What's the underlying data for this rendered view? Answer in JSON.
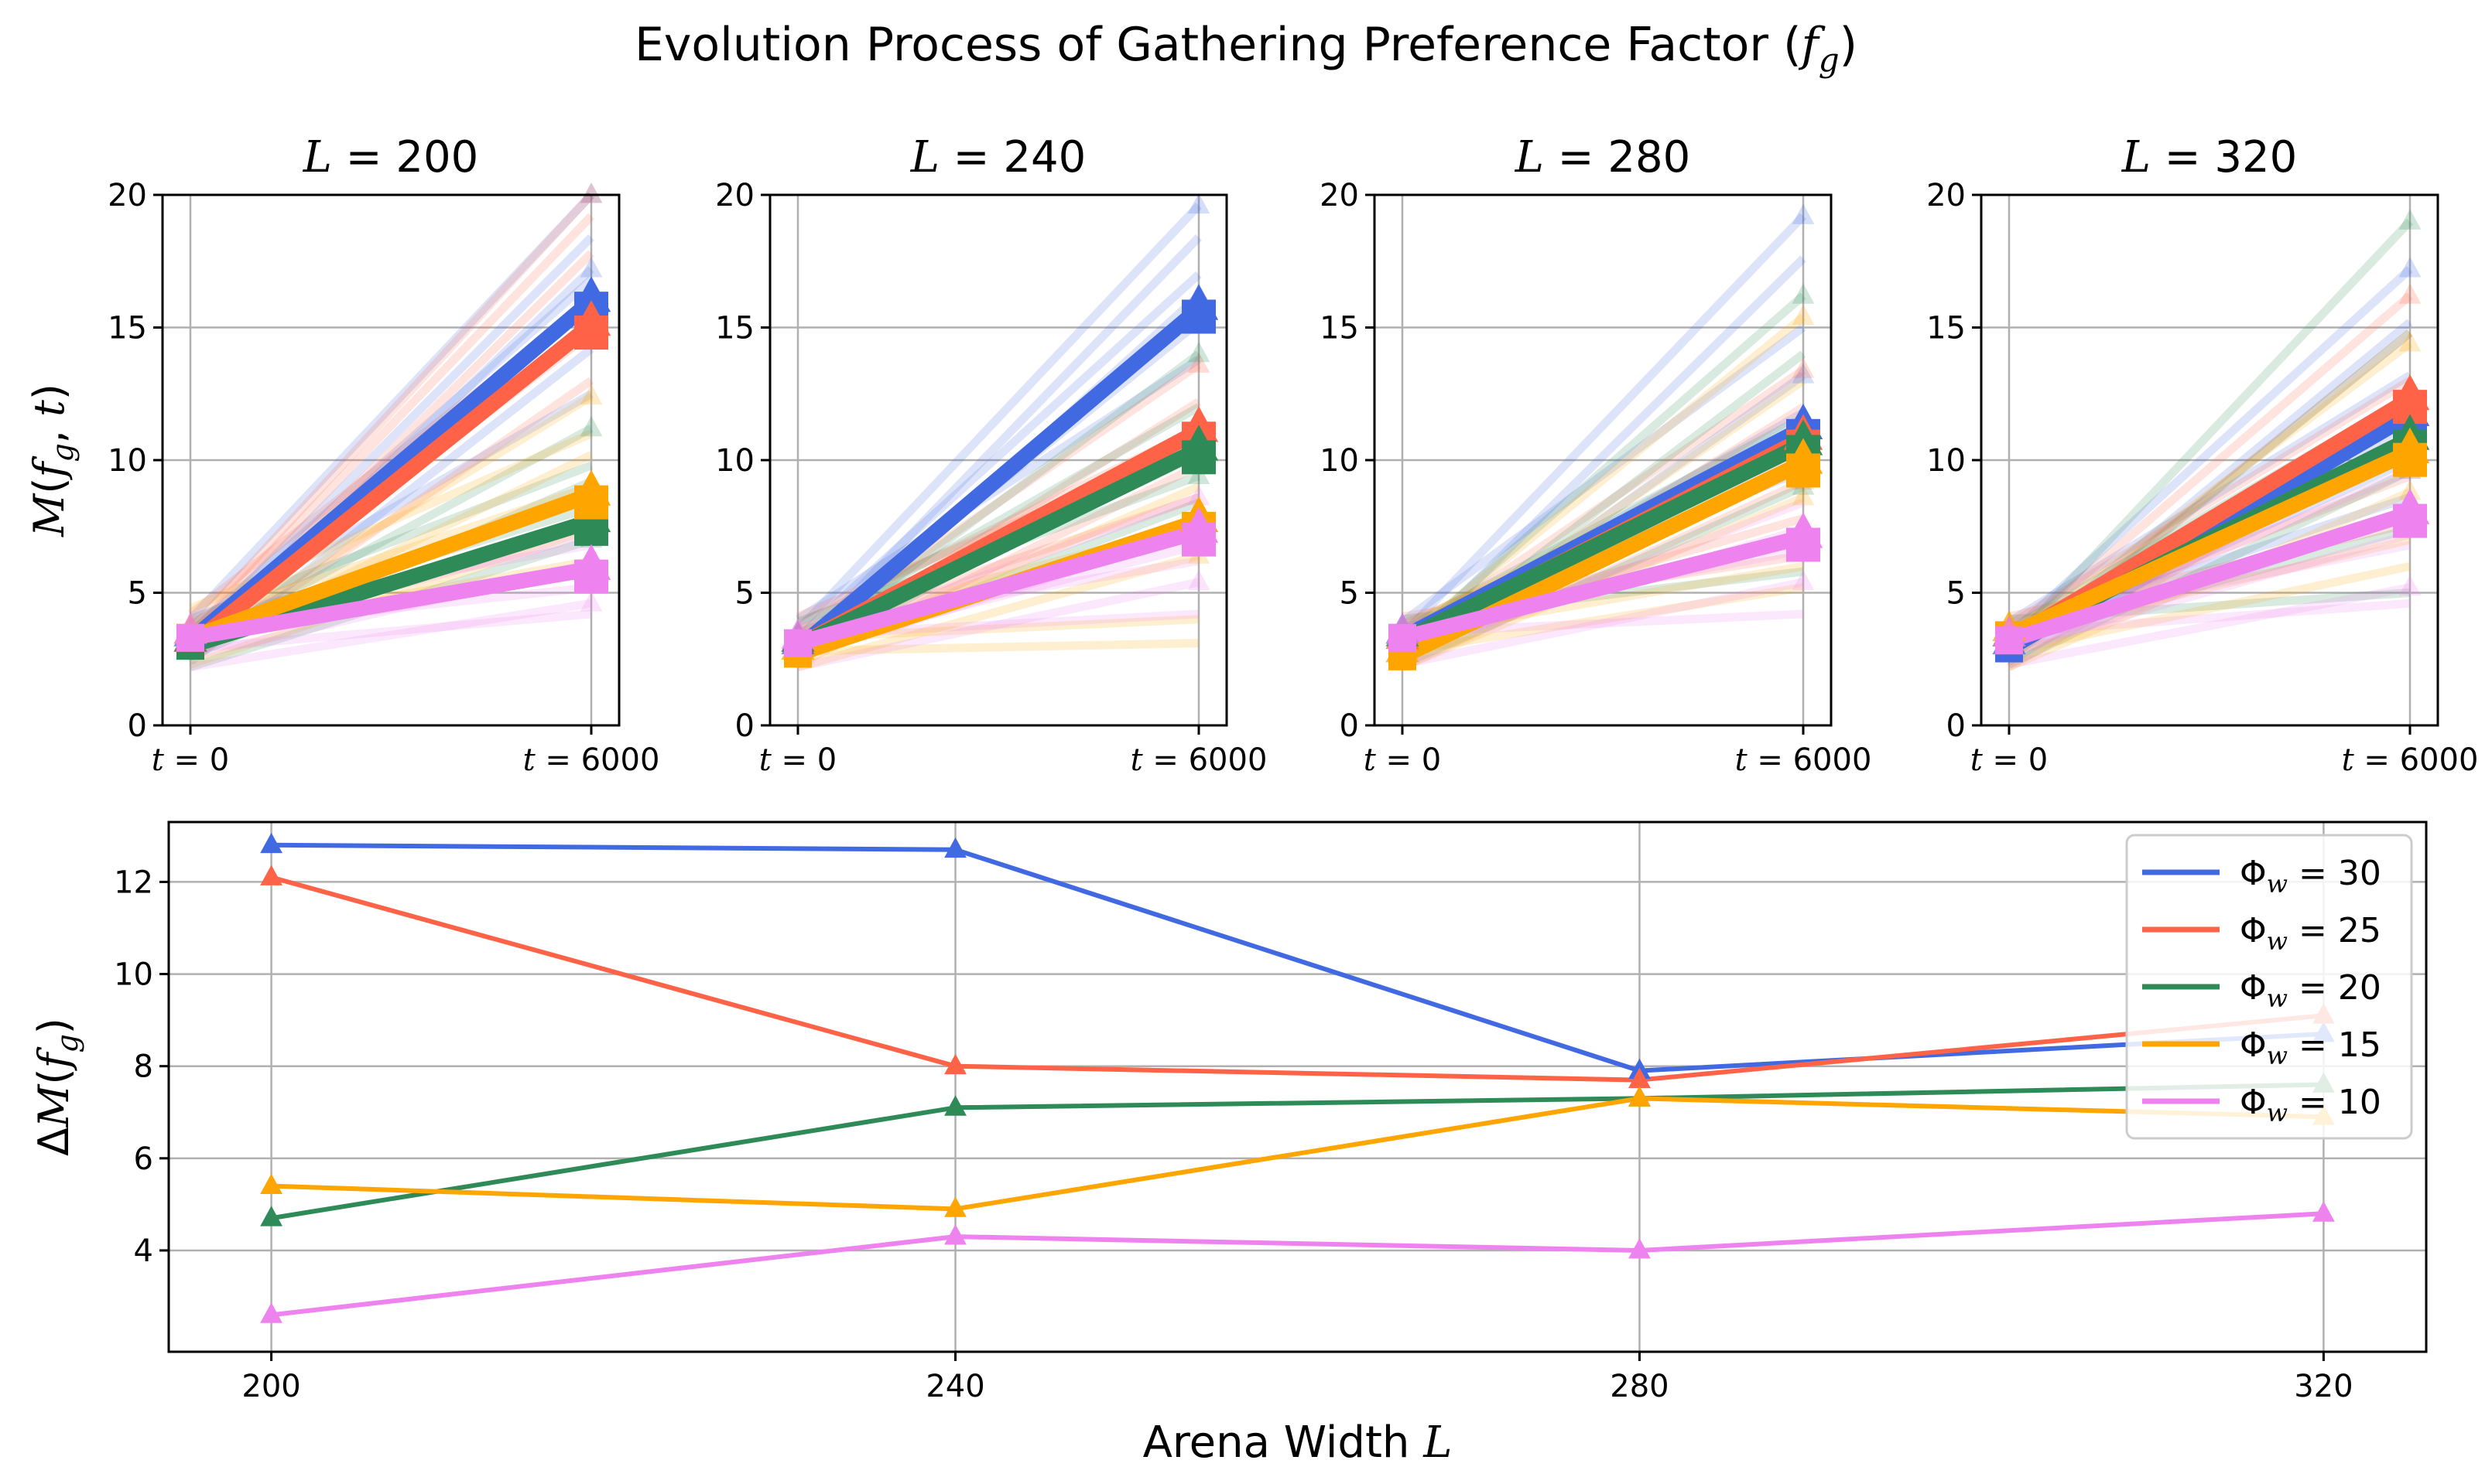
{
  "figure_title": {
    "prefix": "Evolution Process of Gathering Preference Factor (",
    "var": "f",
    "sub": "g",
    "suffix": ")"
  },
  "colors": {
    "phi30": "#4169e1",
    "phi25": "#ff6347",
    "phi20": "#2e8b57",
    "phi15": "#ffa500",
    "phi10": "#ee82ee"
  },
  "chart_data": [
    {
      "type": "line",
      "panel": "L=200",
      "title": {
        "var": "L",
        "rest": " = 200"
      },
      "ylabel": {
        "var": "M",
        "open": "(",
        "f": "f",
        "sub": "g",
        "mid": ", ",
        "t": "t",
        "close": ")"
      },
      "xticks": [
        {
          "var": "t",
          "rest": " = 0"
        },
        {
          "var": "t",
          "rest": " = 6000"
        }
      ],
      "yticks": [
        "0",
        "5",
        "10",
        "15",
        "20"
      ],
      "ylim": [
        0,
        20
      ],
      "faint_lines": [
        {
          "c": "phi30",
          "s": 4.0,
          "e": 20.0
        },
        {
          "c": "phi30",
          "s": 3.2,
          "e": 18.4
        },
        {
          "c": "phi30",
          "s": 3.5,
          "e": 16.8
        },
        {
          "c": "phi30",
          "s": 2.7,
          "e": 17.2
        },
        {
          "c": "phi30",
          "s": 3.8,
          "e": 12.5
        },
        {
          "c": "phi30",
          "s": 2.4,
          "e": 14.2
        },
        {
          "c": "phi25",
          "s": 3.6,
          "e": 20.0
        },
        {
          "c": "phi25",
          "s": 2.9,
          "e": 17.8
        },
        {
          "c": "phi25",
          "s": 4.2,
          "e": 15.9
        },
        {
          "c": "phi25",
          "s": 3.1,
          "e": 14.8
        },
        {
          "c": "phi25",
          "s": 2.5,
          "e": 13.0
        },
        {
          "c": "phi25",
          "s": 3.4,
          "e": 19.2
        },
        {
          "c": "phi20",
          "s": 3.0,
          "e": 11.2
        },
        {
          "c": "phi20",
          "s": 2.6,
          "e": 9.2
        },
        {
          "c": "phi20",
          "s": 3.7,
          "e": 8.2
        },
        {
          "c": "phi20",
          "s": 2.2,
          "e": 7.0
        },
        {
          "c": "phi20",
          "s": 3.3,
          "e": 5.8
        },
        {
          "c": "phi20",
          "s": 4.0,
          "e": 9.8
        },
        {
          "c": "phi15",
          "s": 3.1,
          "e": 12.4
        },
        {
          "c": "phi15",
          "s": 2.8,
          "e": 10.2
        },
        {
          "c": "phi15",
          "s": 3.9,
          "e": 9.0
        },
        {
          "c": "phi15",
          "s": 2.3,
          "e": 7.4
        },
        {
          "c": "phi15",
          "s": 3.5,
          "e": 6.2
        },
        {
          "c": "phi15",
          "s": 4.4,
          "e": 11.0
        },
        {
          "c": "phi10",
          "s": 3.2,
          "e": 7.2
        },
        {
          "c": "phi10",
          "s": 2.6,
          "e": 6.1
        },
        {
          "c": "phi10",
          "s": 3.6,
          "e": 5.2
        },
        {
          "c": "phi10",
          "s": 2.2,
          "e": 4.6
        },
        {
          "c": "phi10",
          "s": 4.1,
          "e": 6.8
        },
        {
          "c": "phi10",
          "s": 2.9,
          "e": 4.2
        }
      ],
      "mean_lines": [
        {
          "c": "phi30",
          "s": 3.2,
          "e": 16.0
        },
        {
          "c": "phi25",
          "s": 3.0,
          "e": 15.1
        },
        {
          "c": "phi20",
          "s": 3.0,
          "e": 7.7
        },
        {
          "c": "phi15",
          "s": 3.3,
          "e": 8.7
        },
        {
          "c": "phi10",
          "s": 3.3,
          "e": 5.9
        }
      ]
    },
    {
      "type": "line",
      "panel": "L=240",
      "title": {
        "var": "L",
        "rest": " = 240"
      },
      "xticks": [
        {
          "var": "t",
          "rest": " = 0"
        },
        {
          "var": "t",
          "rest": " = 6000"
        }
      ],
      "yticks": [
        "0",
        "5",
        "10",
        "15",
        "20"
      ],
      "ylim": [
        0,
        20
      ],
      "faint_lines": [
        {
          "c": "phi30",
          "s": 3.6,
          "e": 19.6
        },
        {
          "c": "phi30",
          "s": 2.8,
          "e": 18.4
        },
        {
          "c": "phi30",
          "s": 3.3,
          "e": 17.0
        },
        {
          "c": "phi30",
          "s": 2.5,
          "e": 16.2
        },
        {
          "c": "phi30",
          "s": 4.0,
          "e": 13.8
        },
        {
          "c": "phi30",
          "s": 3.0,
          "e": 15.2
        },
        {
          "c": "phi25",
          "s": 3.2,
          "e": 13.6
        },
        {
          "c": "phi25",
          "s": 2.7,
          "e": 12.2
        },
        {
          "c": "phi25",
          "s": 3.8,
          "e": 11.2
        },
        {
          "c": "phi25",
          "s": 2.3,
          "e": 9.8
        },
        {
          "c": "phi25",
          "s": 3.5,
          "e": 8.6
        },
        {
          "c": "phi25",
          "s": 4.1,
          "e": 10.6
        },
        {
          "c": "phi20",
          "s": 2.8,
          "e": 14.0
        },
        {
          "c": "phi20",
          "s": 3.4,
          "e": 12.0
        },
        {
          "c": "phi20",
          "s": 2.4,
          "e": 11.0
        },
        {
          "c": "phi20",
          "s": 3.9,
          "e": 9.4
        },
        {
          "c": "phi20",
          "s": 2.6,
          "e": 8.4
        },
        {
          "c": "phi20",
          "s": 3.1,
          "e": 10.2
        },
        {
          "c": "phi15",
          "s": 3.0,
          "e": 10.4
        },
        {
          "c": "phi15",
          "s": 2.5,
          "e": 9.0
        },
        {
          "c": "phi15",
          "s": 3.6,
          "e": 7.6
        },
        {
          "c": "phi15",
          "s": 2.2,
          "e": 6.4
        },
        {
          "c": "phi15",
          "s": 3.3,
          "e": 4.0
        },
        {
          "c": "phi15",
          "s": 2.8,
          "e": 3.1
        },
        {
          "c": "phi10",
          "s": 3.1,
          "e": 8.6
        },
        {
          "c": "phi10",
          "s": 2.6,
          "e": 7.3
        },
        {
          "c": "phi10",
          "s": 3.7,
          "e": 6.2
        },
        {
          "c": "phi10",
          "s": 2.2,
          "e": 5.4
        },
        {
          "c": "phi10",
          "s": 3.4,
          "e": 4.2
        },
        {
          "c": "phi10",
          "s": 2.9,
          "e": 6.8
        }
      ],
      "mean_lines": [
        {
          "c": "phi30",
          "s": 2.9,
          "e": 15.7
        },
        {
          "c": "phi25",
          "s": 3.0,
          "e": 11.1
        },
        {
          "c": "phi20",
          "s": 3.0,
          "e": 10.4
        },
        {
          "c": "phi15",
          "s": 2.7,
          "e": 7.7
        },
        {
          "c": "phi10",
          "s": 3.1,
          "e": 7.3
        }
      ]
    },
    {
      "type": "line",
      "panel": "L=280",
      "title": {
        "var": "L",
        "rest": " = 280"
      },
      "xticks": [
        {
          "var": "t",
          "rest": " = 0"
        },
        {
          "var": "t",
          "rest": " = 6000"
        }
      ],
      "yticks": [
        "0",
        "5",
        "10",
        "15",
        "20"
      ],
      "ylim": [
        0,
        20
      ],
      "faint_lines": [
        {
          "c": "phi30",
          "s": 3.4,
          "e": 19.2
        },
        {
          "c": "phi30",
          "s": 2.7,
          "e": 17.6
        },
        {
          "c": "phi30",
          "s": 3.9,
          "e": 15.0
        },
        {
          "c": "phi30",
          "s": 2.4,
          "e": 13.2
        },
        {
          "c": "phi30",
          "s": 3.1,
          "e": 11.8
        },
        {
          "c": "phi30",
          "s": 3.6,
          "e": 9.6
        },
        {
          "c": "phi25",
          "s": 3.2,
          "e": 13.4
        },
        {
          "c": "phi25",
          "s": 2.6,
          "e": 12.0
        },
        {
          "c": "phi25",
          "s": 3.8,
          "e": 10.2
        },
        {
          "c": "phi25",
          "s": 2.2,
          "e": 9.2
        },
        {
          "c": "phi25",
          "s": 3.5,
          "e": 7.8
        },
        {
          "c": "phi25",
          "s": 4.1,
          "e": 6.4
        },
        {
          "c": "phi20",
          "s": 3.0,
          "e": 16.2
        },
        {
          "c": "phi20",
          "s": 2.5,
          "e": 14.0
        },
        {
          "c": "phi20",
          "s": 3.6,
          "e": 11.6
        },
        {
          "c": "phi20",
          "s": 2.3,
          "e": 9.0
        },
        {
          "c": "phi20",
          "s": 3.3,
          "e": 7.2
        },
        {
          "c": "phi20",
          "s": 4.0,
          "e": 5.8
        },
        {
          "c": "phi15",
          "s": 3.1,
          "e": 15.4
        },
        {
          "c": "phi15",
          "s": 2.6,
          "e": 13.0
        },
        {
          "c": "phi15",
          "s": 3.7,
          "e": 11.0
        },
        {
          "c": "phi15",
          "s": 2.2,
          "e": 8.6
        },
        {
          "c": "phi15",
          "s": 3.4,
          "e": 6.0
        },
        {
          "c": "phi15",
          "s": 2.8,
          "e": 5.2
        },
        {
          "c": "phi10",
          "s": 3.2,
          "e": 9.8
        },
        {
          "c": "phi10",
          "s": 2.7,
          "e": 8.4
        },
        {
          "c": "phi10",
          "s": 3.8,
          "e": 6.6
        },
        {
          "c": "phi10",
          "s": 2.3,
          "e": 5.4
        },
        {
          "c": "phi10",
          "s": 3.5,
          "e": 4.2
        },
        {
          "c": "phi10",
          "s": 2.9,
          "e": 7.4
        }
      ],
      "mean_lines": [
        {
          "c": "phi30",
          "s": 3.3,
          "e": 11.2
        },
        {
          "c": "phi25",
          "s": 3.1,
          "e": 10.8
        },
        {
          "c": "phi20",
          "s": 3.2,
          "e": 10.6
        },
        {
          "c": "phi15",
          "s": 2.6,
          "e": 9.9
        },
        {
          "c": "phi10",
          "s": 3.3,
          "e": 7.1
        }
      ]
    },
    {
      "type": "line",
      "panel": "L=320",
      "title": {
        "var": "L",
        "rest": " = 320"
      },
      "xticks": [
        {
          "var": "t",
          "rest": " = 0"
        },
        {
          "var": "t",
          "rest": " = 6000"
        }
      ],
      "yticks": [
        "0",
        "5",
        "10",
        "15",
        "20"
      ],
      "ylim": [
        0,
        20
      ],
      "faint_lines": [
        {
          "c": "phi30",
          "s": 3.4,
          "e": 17.2
        },
        {
          "c": "phi30",
          "s": 2.7,
          "e": 15.2
        },
        {
          "c": "phi30",
          "s": 3.9,
          "e": 13.2
        },
        {
          "c": "phi30",
          "s": 2.4,
          "e": 11.4
        },
        {
          "c": "phi30",
          "s": 3.1,
          "e": 10.0
        },
        {
          "c": "phi30",
          "s": 3.6,
          "e": 8.6
        },
        {
          "c": "phi25",
          "s": 3.2,
          "e": 16.2
        },
        {
          "c": "phi25",
          "s": 2.6,
          "e": 14.8
        },
        {
          "c": "phi25",
          "s": 3.8,
          "e": 13.0
        },
        {
          "c": "phi25",
          "s": 2.2,
          "e": 11.0
        },
        {
          "c": "phi25",
          "s": 3.5,
          "e": 9.4
        },
        {
          "c": "phi25",
          "s": 4.1,
          "e": 7.6
        },
        {
          "c": "phi20",
          "s": 3.0,
          "e": 19.0
        },
        {
          "c": "phi20",
          "s": 2.5,
          "e": 14.8
        },
        {
          "c": "phi20",
          "s": 3.6,
          "e": 12.4
        },
        {
          "c": "phi20",
          "s": 2.3,
          "e": 9.6
        },
        {
          "c": "phi20",
          "s": 3.3,
          "e": 7.4
        },
        {
          "c": "phi20",
          "s": 4.0,
          "e": 5.0
        },
        {
          "c": "phi15",
          "s": 3.1,
          "e": 14.4
        },
        {
          "c": "phi15",
          "s": 2.6,
          "e": 12.4
        },
        {
          "c": "phi15",
          "s": 3.7,
          "e": 10.4
        },
        {
          "c": "phi15",
          "s": 2.2,
          "e": 8.8
        },
        {
          "c": "phi15",
          "s": 3.4,
          "e": 7.0
        },
        {
          "c": "phi15",
          "s": 2.8,
          "e": 6.0
        },
        {
          "c": "phi10",
          "s": 3.2,
          "e": 9.6
        },
        {
          "c": "phi10",
          "s": 2.7,
          "e": 8.0
        },
        {
          "c": "phi10",
          "s": 3.8,
          "e": 6.8
        },
        {
          "c": "phi10",
          "s": 2.3,
          "e": 5.2
        },
        {
          "c": "phi10",
          "s": 3.5,
          "e": 4.6
        },
        {
          "c": "phi10",
          "s": 2.9,
          "e": 7.2
        }
      ],
      "mean_lines": [
        {
          "c": "phi30",
          "s": 2.9,
          "e": 11.7
        },
        {
          "c": "phi25",
          "s": 3.2,
          "e": 12.3
        },
        {
          "c": "phi20",
          "s": 3.2,
          "e": 10.8
        },
        {
          "c": "phi15",
          "s": 3.4,
          "e": 10.3
        },
        {
          "c": "phi10",
          "s": 3.2,
          "e": 8.0
        }
      ]
    },
    {
      "type": "line",
      "panel": "delta",
      "xlabel": {
        "text": "Arena Width ",
        "var": "L"
      },
      "ylabel": {
        "delta": "Δ",
        "var": "M",
        "open": "(",
        "f": "f",
        "sub": "g",
        "close": ")"
      },
      "categories": [
        "200",
        "240",
        "280",
        "320"
      ],
      "x": [
        200,
        240,
        280,
        320
      ],
      "xlim": [
        194,
        326
      ],
      "yticks": [
        "4",
        "6",
        "8",
        "10",
        "12"
      ],
      "ylim": [
        1.8,
        13.3
      ],
      "legend_position": "top-right",
      "series": [
        {
          "name": "Φw=30",
          "c": "phi30",
          "legend": {
            "phi": "Φ",
            "sub": "w",
            "rest": " = 30"
          },
          "values": [
            12.8,
            12.7,
            7.9,
            8.7
          ]
        },
        {
          "name": "Φw=25",
          "c": "phi25",
          "legend": {
            "phi": "Φ",
            "sub": "w",
            "rest": " = 25"
          },
          "values": [
            12.1,
            8.0,
            7.7,
            9.1
          ]
        },
        {
          "name": "Φw=20",
          "c": "phi20",
          "legend": {
            "phi": "Φ",
            "sub": "w",
            "rest": " = 20"
          },
          "values": [
            4.7,
            7.1,
            7.3,
            7.6
          ]
        },
        {
          "name": "Φw=15",
          "c": "phi15",
          "legend": {
            "phi": "Φ",
            "sub": "w",
            "rest": " = 15"
          },
          "values": [
            5.4,
            4.9,
            7.3,
            6.9
          ]
        },
        {
          "name": "Φw=10",
          "c": "phi10",
          "legend": {
            "phi": "Φ",
            "sub": "w",
            "rest": " = 10"
          },
          "values": [
            2.6,
            4.3,
            4.0,
            4.8
          ]
        }
      ]
    }
  ]
}
